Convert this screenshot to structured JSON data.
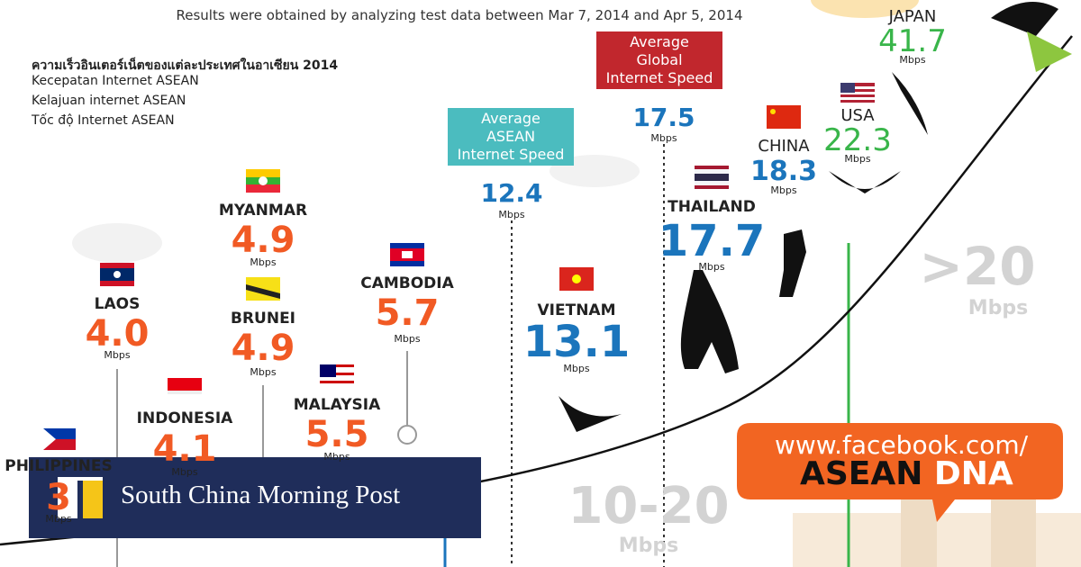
{
  "subtitle": "Results were obtained by analyzing test data between Mar 7, 2014 and Apr 5, 2014",
  "languages": [
    "ความเร็วอินเตอร์เน็ตของแต่ละประเทศในอาเซียน 2014",
    "Kecepatan Internet ASEAN",
    "Kelajuan internet ASEAN",
    "Tốc độ Internet ASEAN"
  ],
  "unit": "Mbps",
  "countries": [
    {
      "name": "PHILIPPINES",
      "speed": "3"
    },
    {
      "name": "LAOS",
      "speed": "4.0"
    },
    {
      "name": "INDONESIA",
      "speed": "4.1"
    },
    {
      "name": "MYANMAR",
      "speed": "4.9"
    },
    {
      "name": "BRUNEI",
      "speed": "4.9"
    },
    {
      "name": "MALAYSIA",
      "speed": "5.5"
    },
    {
      "name": "CAMBODIA",
      "speed": "5.7"
    },
    {
      "name": "VIETNAM",
      "speed": "13.1"
    },
    {
      "name": "THAILAND",
      "speed": "17.7"
    },
    {
      "name": "CHINA",
      "speed": "18.3"
    },
    {
      "name": "USA",
      "speed": "22.3"
    },
    {
      "name": "JAPAN",
      "speed": "41.7"
    }
  ],
  "averages": [
    {
      "label": [
        "Average",
        "ASEAN",
        "Internet Speed"
      ],
      "speed": "12.4"
    },
    {
      "label": [
        "Average",
        "Global",
        "Internet Speed"
      ],
      "speed": "17.5"
    }
  ],
  "zones": [
    "10-20",
    ">20"
  ],
  "banner": {
    "url": "www.facebook.com/",
    "word1": "ASEAN",
    "word2": "DNA"
  },
  "logo": "South China Morning Post"
}
